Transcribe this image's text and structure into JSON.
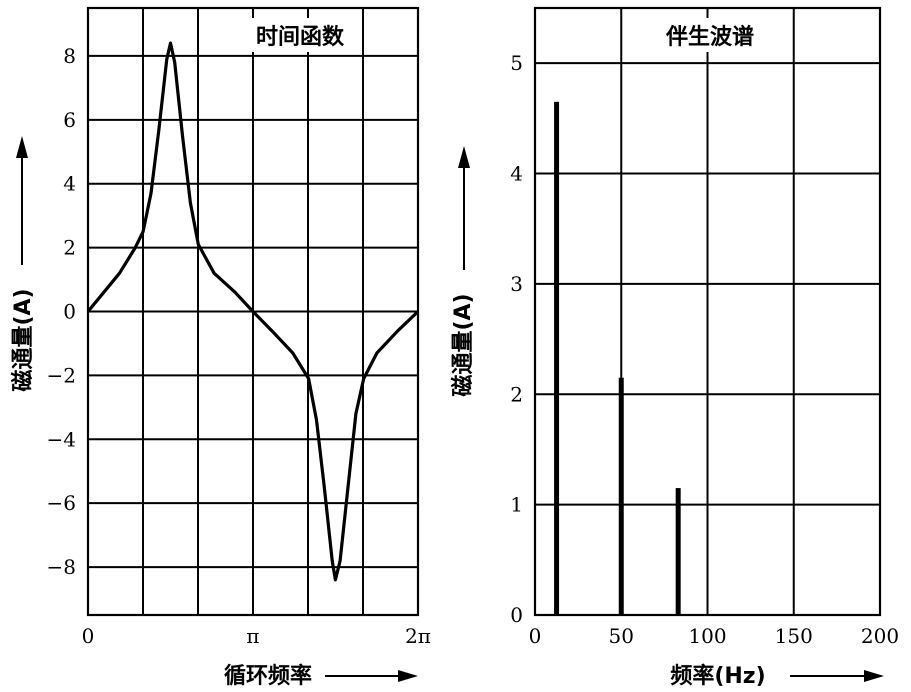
{
  "chart_data": [
    {
      "type": "line",
      "title": "时间函数",
      "xlabel": "循环频率",
      "ylabel": "磁通量(A)",
      "xlim": [
        0,
        6.2832
      ],
      "ylim": [
        -9.5,
        9.5
      ],
      "x_ticks": [
        {
          "value": 0,
          "label": "0"
        },
        {
          "value": 3.1416,
          "label": "π"
        },
        {
          "value": 6.2832,
          "label": "2π"
        }
      ],
      "y_ticks": [
        {
          "value": 8,
          "label": "8"
        },
        {
          "value": 6,
          "label": "6"
        },
        {
          "value": 4,
          "label": "4"
        },
        {
          "value": 2,
          "label": "2"
        },
        {
          "value": 0,
          "label": "0"
        },
        {
          "value": -2,
          "label": "−2"
        },
        {
          "value": -4,
          "label": "−4"
        },
        {
          "value": -6,
          "label": "−6"
        },
        {
          "value": -8,
          "label": "−8"
        }
      ],
      "grid": true,
      "series": [
        {
          "x": [
            0,
            0.3,
            0.6,
            0.9,
            1.05,
            1.2,
            1.35,
            1.5,
            1.57,
            1.65,
            1.8,
            1.95,
            2.1,
            2.4,
            2.8,
            3.14,
            3.5,
            3.9,
            4.2,
            4.35,
            4.5,
            4.65,
            4.71,
            4.8,
            4.95,
            5.1,
            5.25,
            5.5,
            5.9,
            6.2832
          ],
          "y": [
            0,
            0.6,
            1.2,
            2.0,
            2.5,
            3.7,
            5.7,
            7.9,
            8.4,
            7.8,
            5.5,
            3.4,
            2.1,
            1.2,
            0.6,
            0,
            -0.6,
            -1.3,
            -2.1,
            -3.4,
            -5.5,
            -7.8,
            -8.4,
            -7.8,
            -5.5,
            -3.2,
            -2.1,
            -1.3,
            -0.6,
            0
          ]
        }
      ]
    },
    {
      "type": "bar",
      "title": "伴生波谱",
      "xlabel": "频率(Hz)",
      "ylabel": "磁通量(A)",
      "xlim": [
        0,
        200
      ],
      "ylim": [
        0,
        5.5
      ],
      "x_ticks": [
        0,
        50,
        100,
        150,
        200
      ],
      "y_ticks": [
        0,
        1,
        2,
        3,
        4,
        5
      ],
      "grid": true,
      "bars": [
        {
          "x": 12.5,
          "value": 4.65
        },
        {
          "x": 50,
          "value": 2.15
        },
        {
          "x": 83,
          "value": 1.15
        }
      ]
    }
  ]
}
